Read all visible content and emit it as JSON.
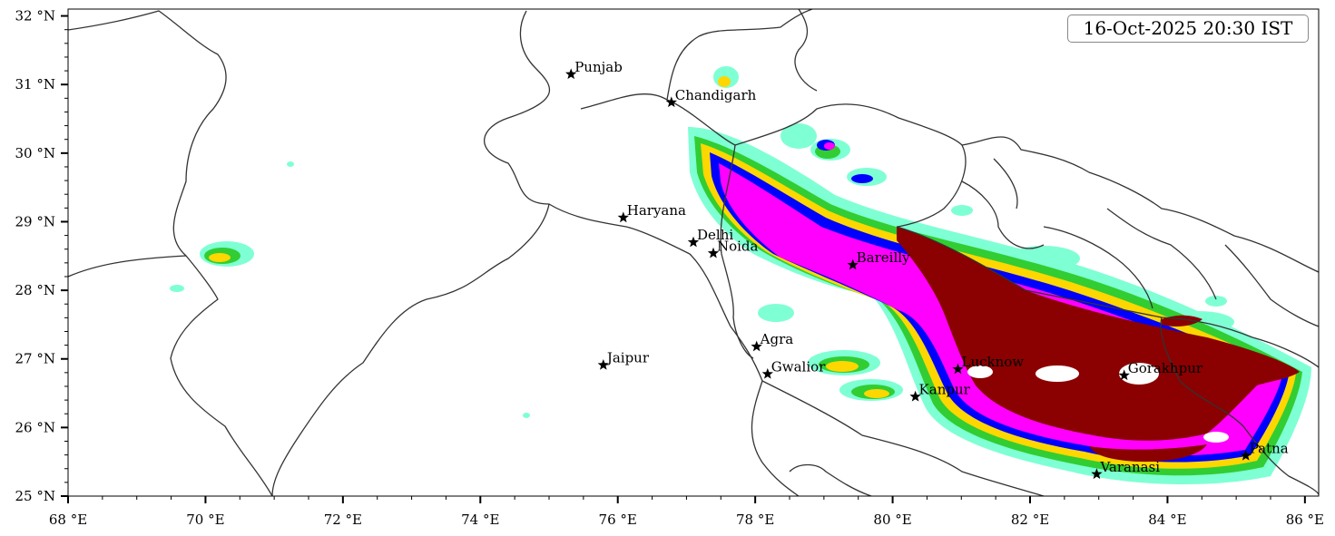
{
  "timestamp": "16-Oct-2025 20:30 IST",
  "map": {
    "lon_range": [
      68,
      86.2
    ],
    "lat_range": [
      25,
      32.1
    ],
    "x_ticks": [
      {
        "value": 68,
        "label": "68 °E"
      },
      {
        "value": 70,
        "label": "70 °E"
      },
      {
        "value": 72,
        "label": "72 °E"
      },
      {
        "value": 74,
        "label": "74 °E"
      },
      {
        "value": 76,
        "label": "76 °E"
      },
      {
        "value": 78,
        "label": "78 °E"
      },
      {
        "value": 80,
        "label": "80 °E"
      },
      {
        "value": 82,
        "label": "82 °E"
      },
      {
        "value": 84,
        "label": "84 °E"
      },
      {
        "value": 86,
        "label": "86 °E"
      }
    ],
    "y_ticks": [
      {
        "value": 25,
        "label": "25 °N"
      },
      {
        "value": 26,
        "label": "26 °N"
      },
      {
        "value": 27,
        "label": "27 °N"
      },
      {
        "value": 28,
        "label": "28 °N"
      },
      {
        "value": 29,
        "label": "29 °N"
      },
      {
        "value": 30,
        "label": "30 °N"
      },
      {
        "value": 31,
        "label": "31 °N"
      },
      {
        "value": 32,
        "label": "32 °N"
      }
    ],
    "cities": [
      {
        "name": "Punjab",
        "lon": 75.32,
        "lat": 31.15
      },
      {
        "name": "Chandigarh",
        "lon": 76.78,
        "lat": 30.74
      },
      {
        "name": "Haryana",
        "lon": 76.08,
        "lat": 29.06
      },
      {
        "name": "Delhi",
        "lon": 77.1,
        "lat": 28.7
      },
      {
        "name": "Noida",
        "lon": 77.39,
        "lat": 28.54
      },
      {
        "name": "Bareilly",
        "lon": 79.42,
        "lat": 28.37
      },
      {
        "name": "Agra",
        "lon": 78.02,
        "lat": 27.18
      },
      {
        "name": "Jaipur",
        "lon": 75.79,
        "lat": 26.91
      },
      {
        "name": "Gwalior",
        "lon": 78.18,
        "lat": 26.78
      },
      {
        "name": "Lucknow",
        "lon": 80.95,
        "lat": 26.85
      },
      {
        "name": "Kanpur",
        "lon": 80.33,
        "lat": 26.45
      },
      {
        "name": "Gorakhpur",
        "lon": 83.37,
        "lat": 26.76
      },
      {
        "name": "Varanasi",
        "lon": 82.97,
        "lat": 25.32
      },
      {
        "name": "Patna",
        "lon": 85.14,
        "lat": 25.59
      }
    ],
    "colors": {
      "level1": "#7fffd4",
      "level2": "#32cd32",
      "level3": "#ffd700",
      "level4": "#0000ff",
      "level5": "#ff00ff",
      "level6": "#8b0000",
      "border": "#333333"
    }
  }
}
